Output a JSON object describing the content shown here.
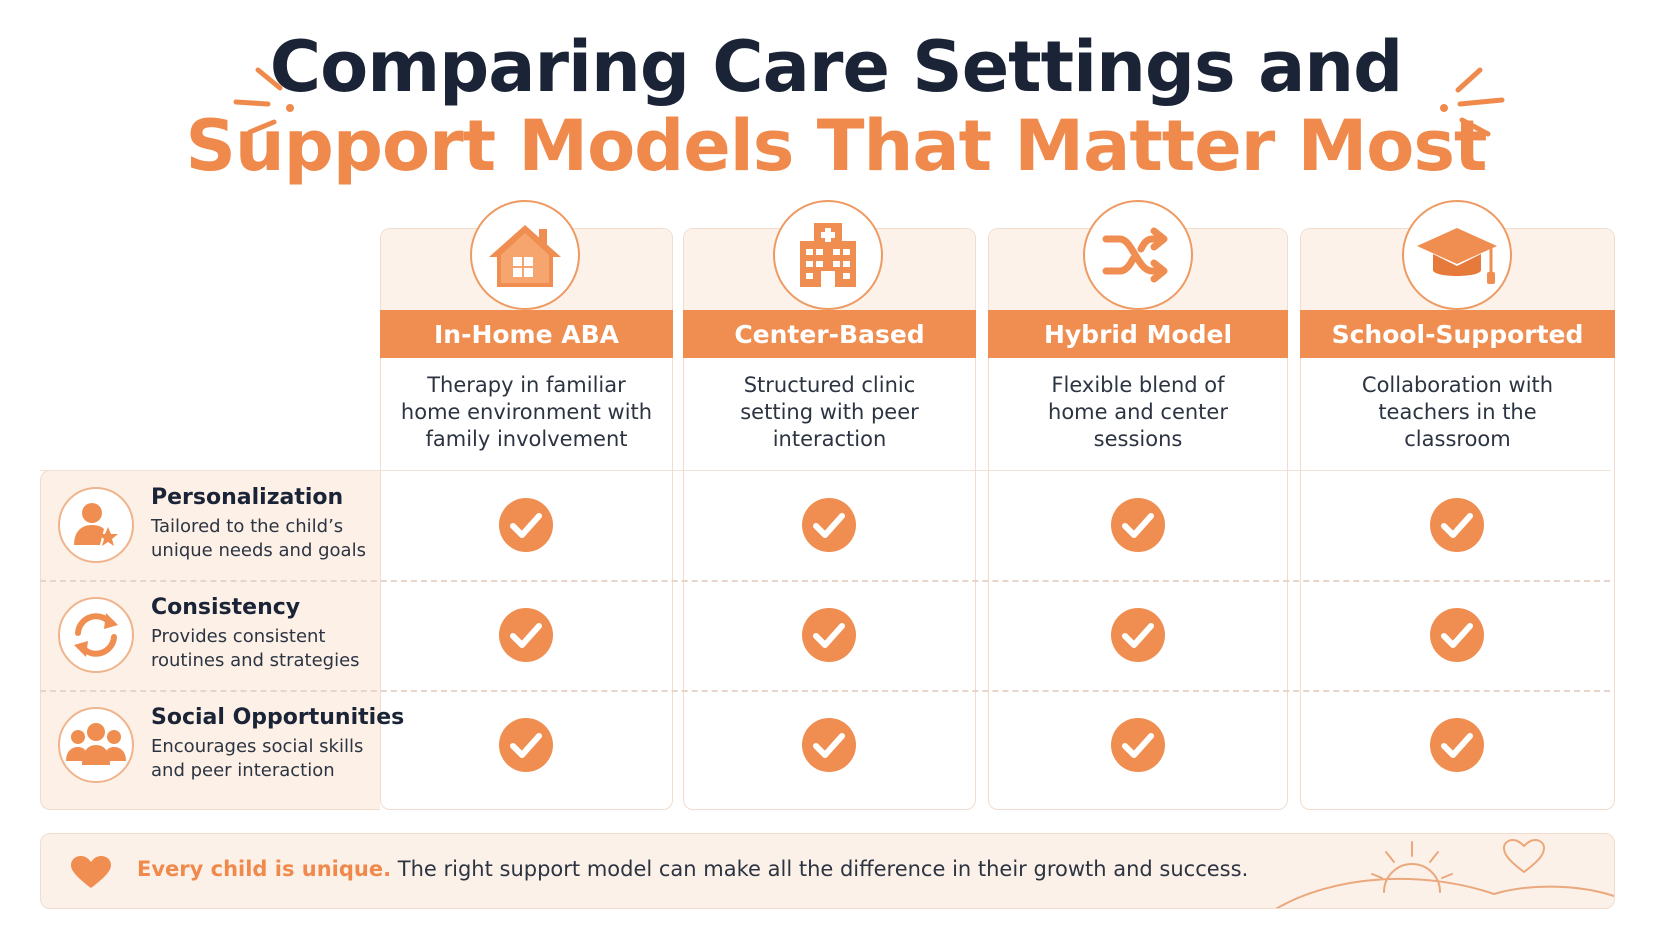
{
  "title": {
    "line1": "Comparing Care Settings and",
    "line2": "Support Models That Matter Most"
  },
  "colors": {
    "accent": "#ef8e50",
    "dark": "#1b2437",
    "panel": "#fcf0e7"
  },
  "columns": [
    {
      "label": "In-Home ABA",
      "description": "Therapy in familiar home environment with family involvement",
      "icon": "house-icon"
    },
    {
      "label": "Center-Based",
      "description": "Structured clinic setting with peer interaction",
      "icon": "building-icon"
    },
    {
      "label": "Hybrid Model",
      "description": "Flexible blend of home and center sessions",
      "icon": "shuffle-icon"
    },
    {
      "label": "School-Supported",
      "description": "Collaboration with teachers in the classroom",
      "icon": "graduation-cap-icon"
    }
  ],
  "features": [
    {
      "title": "Personalization",
      "description": "Tailored to the child’s unique needs and goals",
      "icon": "person-star-icon"
    },
    {
      "title": "Consistency",
      "description": "Provides consistent routines and strategies",
      "icon": "refresh-icon"
    },
    {
      "title": "Social Opportunities",
      "description": "Encourages social skills and peer interaction",
      "icon": "group-icon"
    }
  ],
  "checks": [
    [
      true,
      true,
      true,
      true
    ],
    [
      true,
      true,
      true,
      true
    ],
    [
      true,
      true,
      true,
      true
    ]
  ],
  "footer": {
    "strong": "Every child is unique.",
    "text": " The right support model can make all the difference in their growth and success."
  }
}
